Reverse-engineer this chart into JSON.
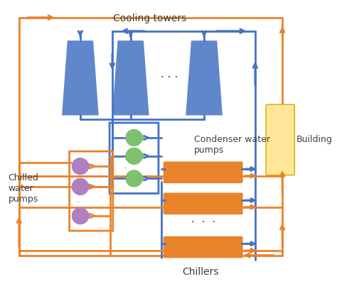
{
  "bg_color": "#ffffff",
  "blue": "#4472C4",
  "orange": "#E8832A",
  "green": "#7DC16E",
  "purple": "#B07FBE",
  "yellow": "#FFE699",
  "yellow_edge": "#D4A800",
  "text_color": "#404040",
  "cooling_tower_label": "Cooling towers",
  "condenser_pump_label": "Condenser water\npumps",
  "chilled_pump_label": "Chilled\nwater\npumps",
  "chiller_label": "Chillers",
  "building_label": "Building",
  "lw": 2.0
}
